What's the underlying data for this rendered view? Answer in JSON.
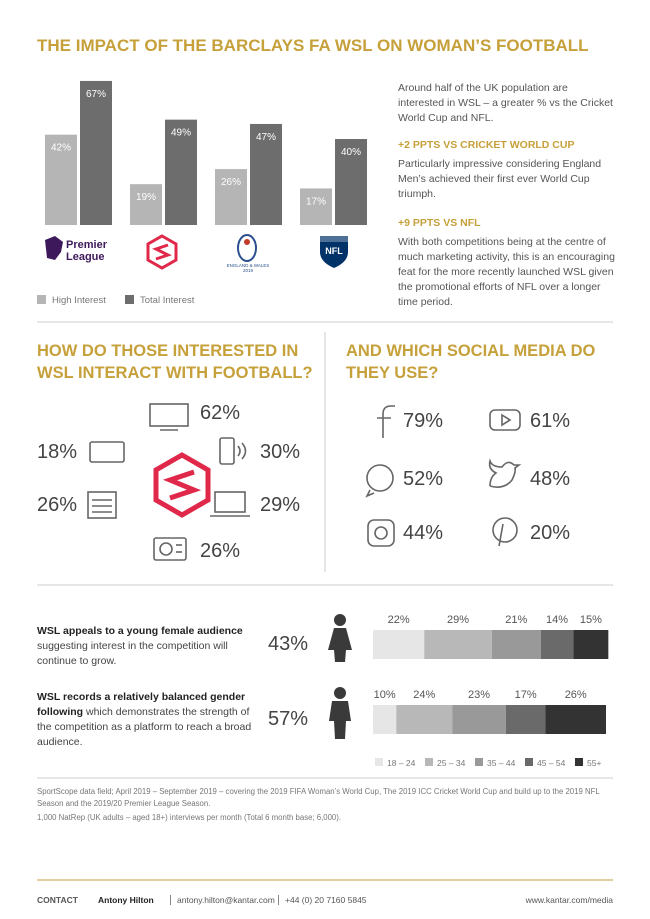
{
  "title": "THE IMPACT OF THE BARCLAYS FA WSL ON WOMAN’S FOOTBALL",
  "intro": {
    "text": "Around half of the UK population are interested in WSL – a greater % vs the Cricket World Cup and NFL.",
    "points": [
      {
        "heading": "+2 PPTS VS CRICKET WORLD CUP",
        "text": "Particularly impressive considering England Men’s achieved their first ever World Cup triumph."
      },
      {
        "heading": "+9 PPTS VS NFL",
        "text": "With both competitions being at the centre of much marketing activity, this is an encouraging feat for the more recently launched WSL given the promotional efforts of NFL over a longer time period."
      }
    ]
  },
  "interaction": {
    "title": "HOW DO THOSE INTERESTED IN WSL INTERACT WITH FOOTBALL?",
    "items": [
      "62%",
      "18%",
      "30%",
      "26%",
      "29%",
      "26%"
    ]
  },
  "social": {
    "title": "AND WHICH SOCIAL MEDIA DO THEY USE?",
    "items": [
      "79%",
      "61%",
      "52%",
      "48%",
      "44%",
      "20%"
    ]
  },
  "audience": {
    "rows": [
      {
        "bold": "WSL appeals to a young female audience",
        "text": "suggesting interest in the competition will continue to grow.",
        "share": "43%"
      },
      {
        "bold": "WSL records a relatively balanced gender following",
        "text": "which demonstrates the strength of the competition as a platform to reach a broad audience.",
        "share": "57%"
      }
    ]
  },
  "notes": [
    "SportScope data field; April 2019 – September 2019 – covering the 2019 FIFA Woman’s World Cup, The 2019 ICC Cricket World Cup and build up to the 2019 NFL Season and the 2019/20 Premier League Season.",
    "1,000 NatRep (UK adults – aged 18+) interviews per month (Total 6 month base; 6,000)."
  ],
  "footer": {
    "contact": "CONTACT",
    "name": "Antony Hilton",
    "email": "antony.hilton@kantar.com",
    "phone": "+44 (0) 20 7160 5845",
    "url": "www.kantar.com/media"
  },
  "chart_data": [
    {
      "type": "bar",
      "categories": [
        "Premier League",
        null,
        "ENGLAND & WALES 2019",
        "NFL"
      ],
      "series": [
        {
          "name": "High Interest",
          "color": "#b5b5b5",
          "values": [
            42,
            19,
            26,
            17
          ],
          "value_labels": [
            "42%",
            "19%",
            "26%",
            "17%"
          ]
        },
        {
          "name": "Total Interest",
          "color": "#6d6d6d",
          "values": [
            67,
            49,
            47,
            40
          ],
          "value_labels": [
            "67%",
            "49%",
            "47%",
            "40%"
          ]
        }
      ]
    },
    {
      "type": "bar",
      "orientation": "horizontal",
      "stacked": true,
      "categories": [
        null,
        null
      ],
      "series": [
        {
          "name": "18 – 24",
          "color": "#e6e6e6",
          "values": [
            22,
            10
          ],
          "value_labels": [
            "22%",
            "10%"
          ]
        },
        {
          "name": "25 – 34",
          "color": "#b8b8b8",
          "values": [
            29,
            24
          ],
          "value_labels": [
            "29%",
            "24%"
          ]
        },
        {
          "name": "35 – 44",
          "color": "#999999",
          "values": [
            21,
            23
          ],
          "value_labels": [
            "21%",
            "23%"
          ]
        },
        {
          "name": "45 – 54",
          "color": "#6a6a6a",
          "values": [
            14,
            17
          ],
          "value_labels": [
            "14%",
            "17%"
          ]
        },
        {
          "name": "55+",
          "color": "#333333",
          "values": [
            15,
            26
          ],
          "value_labels": [
            "15%",
            "26%"
          ]
        }
      ]
    }
  ]
}
